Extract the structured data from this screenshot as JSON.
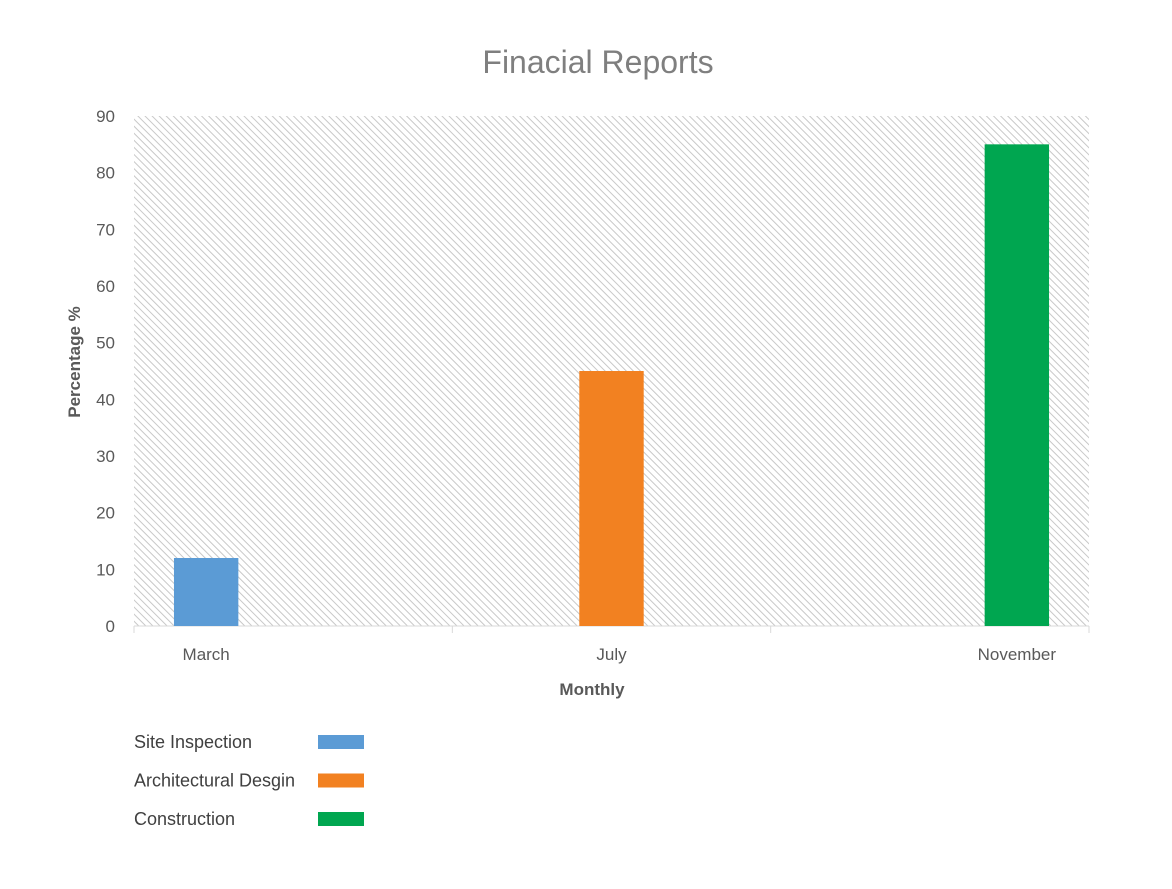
{
  "chart_data": {
    "type": "bar",
    "title": "Finacial Reports",
    "xlabel": "Monthly",
    "ylabel": "Percentage %",
    "categories": [
      "March",
      "July",
      "November"
    ],
    "ylim": [
      0,
      90
    ],
    "yticks": [
      0,
      10,
      20,
      30,
      40,
      50,
      60,
      70,
      80,
      90
    ],
    "series": [
      {
        "name": "Site Inspection",
        "color": "#5b9bd5",
        "values": [
          12,
          null,
          null
        ]
      },
      {
        "name": "Architectural Desgin",
        "color": "#f28121",
        "values": [
          null,
          45,
          null
        ]
      },
      {
        "name": "Construction",
        "color": "#00a650",
        "values": [
          null,
          null,
          85
        ]
      }
    ],
    "grid": false,
    "plot_background": "diagonal-hatch",
    "legend_position": "bottom-left"
  }
}
